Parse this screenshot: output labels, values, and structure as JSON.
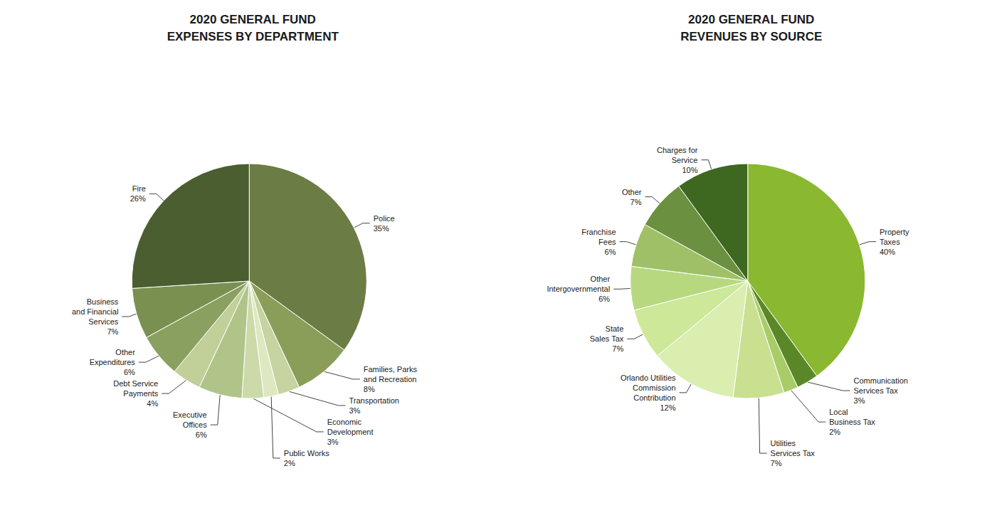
{
  "chart_data": [
    {
      "type": "pie",
      "title": "2020 GENERAL FUND\nEXPENSES BY DEPARTMENT",
      "categories": [
        "Police",
        "Families, Parks\nand Recreation",
        "Transportation",
        "Public Works",
        "Economic\nDevelopment",
        "Executive\nOffices",
        "Debt Service\nPayments",
        "Other\nExpenditures",
        "Business\nand Financial\nServices",
        "Fire"
      ],
      "values": [
        35,
        8,
        3,
        2,
        3,
        6,
        4,
        6,
        7,
        26
      ],
      "value_labels": [
        "35%",
        "8%",
        "3%",
        "2%",
        "3%",
        "6%",
        "4%",
        "6%",
        "7%",
        "26%"
      ],
      "colors": [
        "#6b7c45",
        "#8a9e5a",
        "#c5d4a0",
        "#dde8c0",
        "#ccdaaa",
        "#b0c48a",
        "#c0d098",
        "#8aA060",
        "#7a9050",
        "#4a5e30"
      ]
    },
    {
      "type": "pie",
      "title": "2020 GENERAL FUND\nREVENUES BY SOURCE",
      "categories": [
        "Property\nTaxes",
        "Communication\nServices Tax",
        "Local\nBusiness Tax",
        "Utilities\nServices Tax",
        "Orlando Utilities\nCommission\nContribution",
        "State\nSales Tax",
        "Other\nIntergovernmental",
        "Franchise\nFees",
        "Other",
        "Charges for\nService"
      ],
      "values": [
        40,
        3,
        2,
        7,
        12,
        7,
        6,
        6,
        7,
        10
      ],
      "value_labels": [
        "40%",
        "3%",
        "2%",
        "7%",
        "12%",
        "7%",
        "6%",
        "6%",
        "7%",
        "10%"
      ],
      "colors": [
        "#8ab830",
        "#5a8828",
        "#a8cc68",
        "#c8e090",
        "#daeeb0",
        "#cce898",
        "#b8d880",
        "#a0c068",
        "#6a9040",
        "#3e6820"
      ]
    }
  ]
}
